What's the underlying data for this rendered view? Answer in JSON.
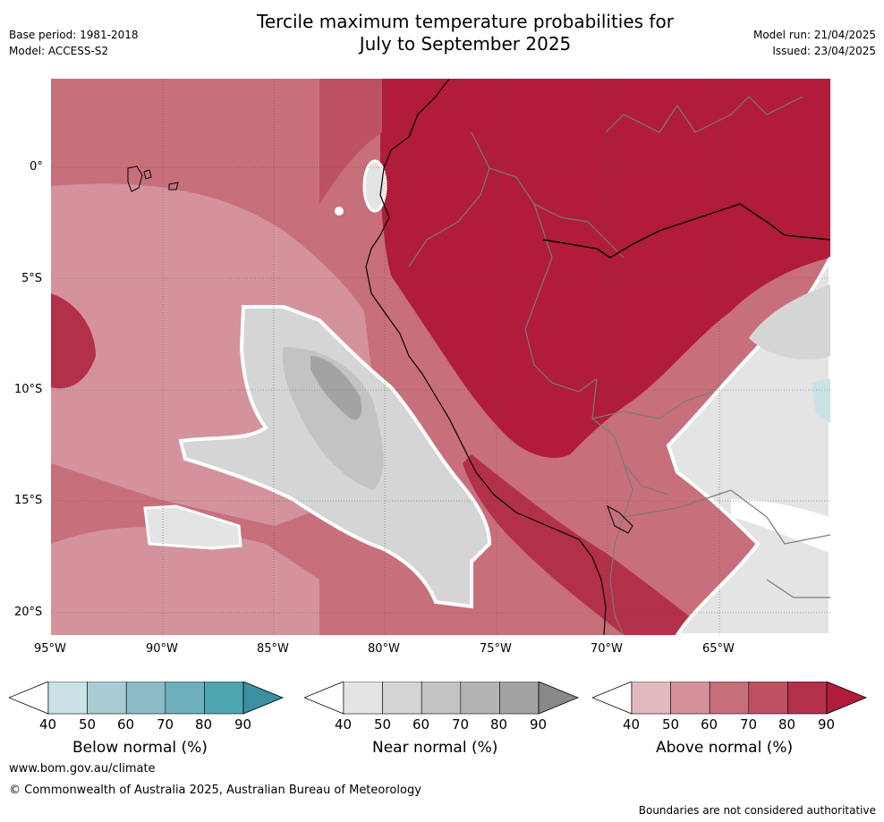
{
  "header": {
    "base_period": "Base period: 1981-2018",
    "model": "Model: ACCESS-S2",
    "title_line1": "Tercile maximum temperature probabilities for",
    "title_line2": "July to September 2025",
    "model_run": "Model run: 21/04/2025",
    "issued": "Issued: 23/04/2025"
  },
  "map": {
    "lat_labels": [
      "0°",
      "5°S",
      "10°S",
      "15°S",
      "20°S"
    ],
    "lon_labels": [
      "95°W",
      "90°W",
      "85°W",
      "80°W",
      "75°W",
      "70°W",
      "65°W"
    ]
  },
  "legends": [
    {
      "title": "Below normal (%)",
      "ticks": [
        "40",
        "50",
        "60",
        "70",
        "80",
        "90"
      ],
      "colors": [
        "#c9e2e6",
        "#a8ccd2",
        "#8bbcc6",
        "#6dafba",
        "#4ea4b1",
        "#3a8fa0"
      ]
    },
    {
      "title": "Near normal (%)",
      "ticks": [
        "40",
        "50",
        "60",
        "70",
        "80",
        "90"
      ],
      "colors": [
        "#e4e4e4",
        "#d5d5d5",
        "#c3c3c3",
        "#b3b3b3",
        "#a3a3a3",
        "#888888"
      ]
    },
    {
      "title": "Above normal (%)",
      "ticks": [
        "40",
        "50",
        "60",
        "70",
        "80",
        "90"
      ],
      "colors": [
        "#e3b9c0",
        "#d4939c",
        "#c86f7c",
        "#bd5264",
        "#b3304a",
        "#b01c39"
      ]
    }
  ],
  "footer": {
    "url": "www.bom.gov.au/climate",
    "copyright": "© Commonwealth of Australia 2025, Australian Bureau of Meteorology",
    "disclaimer": "Boundaries are not considered authoritative"
  }
}
